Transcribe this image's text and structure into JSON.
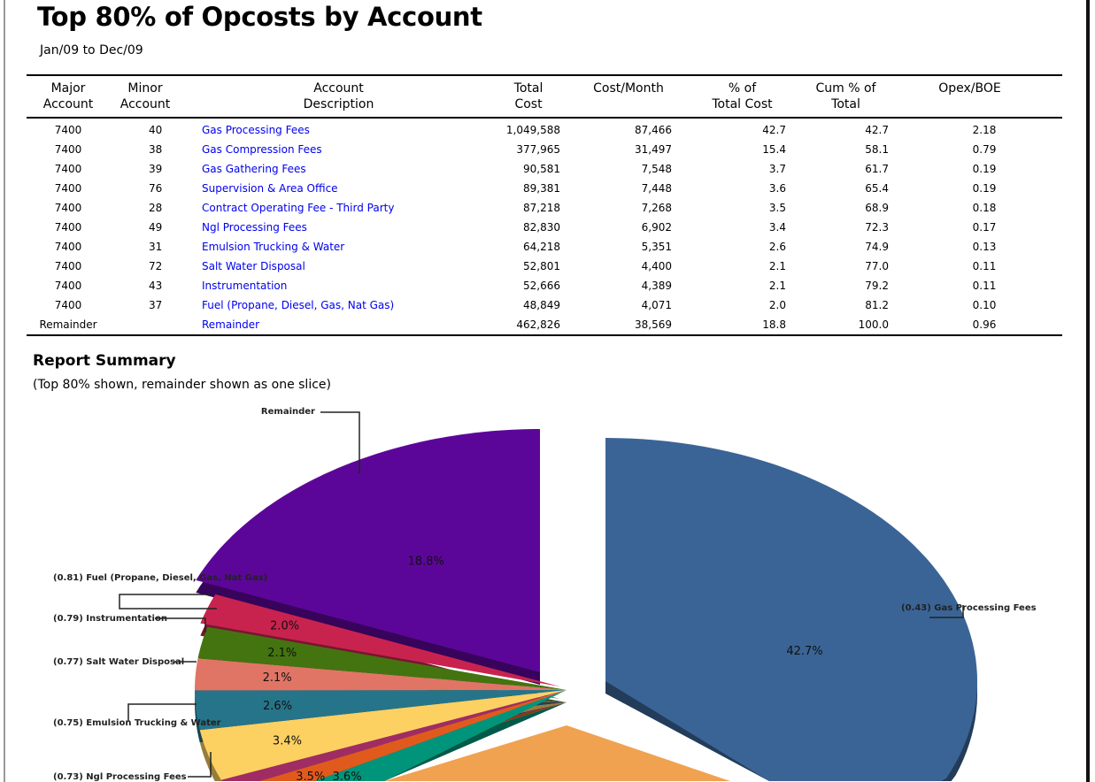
{
  "title": "Top 80% of Opcosts by Account",
  "subtitle": "Jan/09 to Dec/09",
  "table": {
    "headers": [
      [
        "Major",
        "Account"
      ],
      [
        "Minor",
        "Account"
      ],
      [
        "Account",
        "Description"
      ],
      [
        "Total",
        "Cost"
      ],
      [
        "Cost/Month",
        ""
      ],
      [
        "% of",
        "Total Cost"
      ],
      [
        "Cum % of",
        "Total"
      ],
      [
        "",
        "Opex/BOE"
      ]
    ],
    "rows": [
      [
        "7400",
        "40",
        "Gas Processing Fees",
        "1,049,588",
        "87,466",
        "42.7",
        "42.7",
        "2.18"
      ],
      [
        "7400",
        "38",
        "Gas Compression Fees",
        "377,965",
        "31,497",
        "15.4",
        "58.1",
        "0.79"
      ],
      [
        "7400",
        "39",
        "Gas Gathering Fees",
        "90,581",
        "7,548",
        "3.7",
        "61.7",
        "0.19"
      ],
      [
        "7400",
        "76",
        "Supervision & Area Office",
        "89,381",
        "7,448",
        "3.6",
        "65.4",
        "0.19"
      ],
      [
        "7400",
        "28",
        "Contract Operating Fee - Third Party",
        "87,218",
        "7,268",
        "3.5",
        "68.9",
        "0.18"
      ],
      [
        "7400",
        "49",
        "Ngl Processing Fees",
        "82,830",
        "6,902",
        "3.4",
        "72.3",
        "0.17"
      ],
      [
        "7400",
        "31",
        "Emulsion Trucking & Water",
        "64,218",
        "5,351",
        "2.6",
        "74.9",
        "0.13"
      ],
      [
        "7400",
        "72",
        "Salt Water Disposal",
        "52,801",
        "4,400",
        "2.1",
        "77.0",
        "0.11"
      ],
      [
        "7400",
        "43",
        "Instrumentation",
        "52,666",
        "4,389",
        "2.1",
        "79.2",
        "0.11"
      ],
      [
        "7400",
        "37",
        "Fuel (Propane, Diesel, Gas, Nat Gas)",
        "48,849",
        "4,071",
        "2.0",
        "81.2",
        "0.10"
      ],
      [
        "Remainder",
        "",
        "Remainder",
        "462,826",
        "38,569",
        "18.8",
        "100.0",
        "0.96"
      ]
    ]
  },
  "summary": {
    "title": "Report Summary",
    "note": "(Top 80% shown, remainder shown as one slice)"
  },
  "chart_data": {
    "type": "pie",
    "slices": [
      {
        "label": "Gas Processing Fees",
        "value": 42.7,
        "pct_label": "42.7%",
        "callout": "(0.43) Gas Processing Fees",
        "color": "#3a6496"
      },
      {
        "label": "Gas Compression Fees",
        "value": 15.4,
        "pct_label": "",
        "callout": "",
        "color": "#f0a250"
      },
      {
        "label": "Gas Gathering Fees",
        "value": 3.7,
        "pct_label": "",
        "callout": "",
        "color": "#00957a"
      },
      {
        "label": "Supervision & Area Office",
        "value": 3.6,
        "pct_label": "3.6%",
        "callout": "",
        "color": "#e05a1e"
      },
      {
        "label": "Contract Operating Fee - Third Party",
        "value": 3.5,
        "pct_label": "3.5%",
        "callout": "",
        "color": "#a02c64"
      },
      {
        "label": "Ngl Processing Fees",
        "value": 3.4,
        "pct_label": "3.4%",
        "callout": "(0.73) Ngl Processing Fees",
        "color": "#fdd062"
      },
      {
        "label": "Emulsion Trucking & Water",
        "value": 2.6,
        "pct_label": "2.6%",
        "callout": "(0.75) Emulsion Trucking & Water",
        "color": "#267489"
      },
      {
        "label": "Salt Water Disposal",
        "value": 2.1,
        "pct_label": "2.1%",
        "callout": "(0.77) Salt Water Disposal",
        "color": "#e07566"
      },
      {
        "label": "Instrumentation",
        "value": 2.1,
        "pct_label": "2.1%",
        "callout": "(0.79) Instrumentation",
        "color": "#44740f"
      },
      {
        "label": "Fuel (Propane, Diesel, Gas, Nat Gas)",
        "value": 2.0,
        "pct_label": "2.0%",
        "callout": "(0.81) Fuel (Propane, Diesel, Gas, Nat Gas)",
        "color": "#c8234f"
      },
      {
        "label": "Remainder",
        "value": 18.8,
        "pct_label": "18.8%",
        "callout": "Remainder",
        "color": "#5c0699"
      }
    ]
  }
}
